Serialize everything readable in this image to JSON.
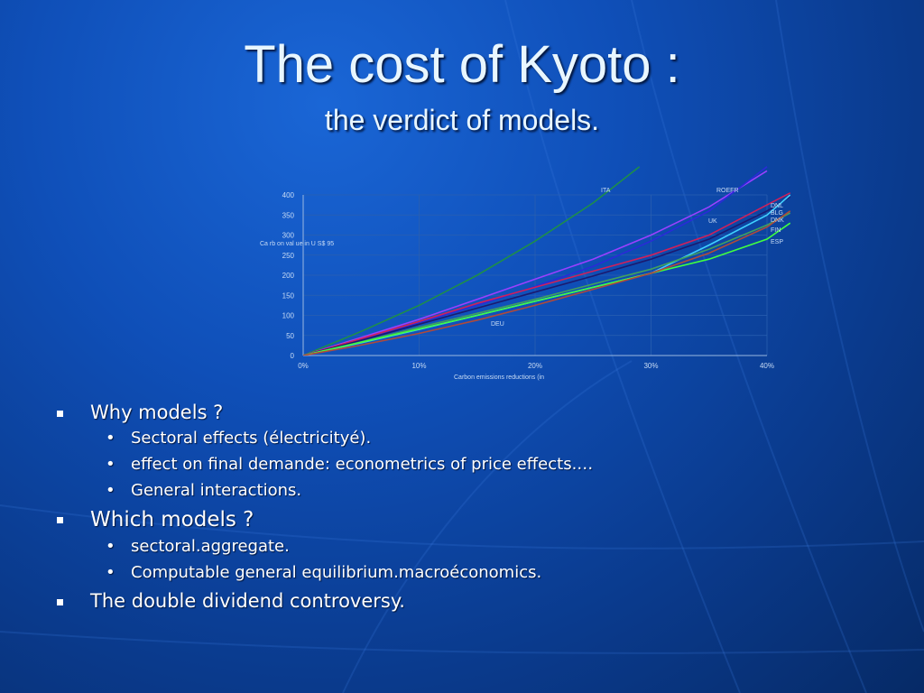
{
  "slide": {
    "title": "The cost of Kyoto :",
    "subtitle": "the verdict of models."
  },
  "bullets": [
    {
      "text": "Why models ?",
      "level": 1,
      "children": [
        {
          "text": "Sectoral effects (électricityé).",
          "level": 2
        },
        {
          "text": "effect on final demande: econometrics of price effects.…",
          "level": 2
        },
        {
          "text": "General interactions.",
          "level": 2
        }
      ]
    },
    {
      "text": "Which models ?",
      "level": 1,
      "children": [
        {
          "text": "sectoral.aggregate.",
          "level": 2
        },
        {
          "text": "Computable general equilibrium.macroéconomics.",
          "level": 2
        }
      ]
    },
    {
      "text": "The double dividend controversy.",
      "level": 1,
      "children": []
    }
  ],
  "chart_data": {
    "type": "line",
    "title": "",
    "xlabel": "Carbon emissions reductions (in",
    "ylabel": "Ca rb on val ue in U S$ 95",
    "xlim": [
      0,
      40
    ],
    "ylim": [
      0,
      400
    ],
    "xticks": [
      0,
      10,
      20,
      30,
      40
    ],
    "xtick_labels": [
      "0%",
      "10%",
      "20%",
      "30%",
      "40%"
    ],
    "yticks": [
      0,
      50,
      100,
      150,
      200,
      250,
      300,
      350,
      400
    ],
    "grid": true,
    "series": [
      {
        "name": "ITA",
        "color": "#1e8e4a",
        "x": [
          0,
          5,
          10,
          15,
          20,
          25,
          29
        ],
        "y": [
          0,
          60,
          125,
          200,
          285,
          380,
          470
        ]
      },
      {
        "name": "ROEFR",
        "color": "#9a40ff",
        "x": [
          0,
          5,
          10,
          15,
          20,
          25,
          30,
          35,
          40
        ],
        "y": [
          0,
          45,
          90,
          140,
          190,
          240,
          300,
          370,
          460
        ]
      },
      {
        "name": "UK",
        "color": "#2a2ad8",
        "x": [
          0,
          5,
          10,
          15,
          20,
          25,
          30,
          35,
          40
        ],
        "y": [
          0,
          40,
          82,
          125,
          172,
          222,
          285,
          360,
          470
        ]
      },
      {
        "name": "DNL",
        "color": "#d0205a",
        "x": [
          0,
          5,
          10,
          15,
          20,
          25,
          30,
          35,
          40,
          42
        ],
        "y": [
          0,
          42,
          85,
          130,
          170,
          210,
          250,
          300,
          375,
          405
        ]
      },
      {
        "name": "BLG",
        "color": "#1a1a70",
        "x": [
          0,
          5,
          10,
          15,
          20,
          25,
          30,
          35,
          40,
          42
        ],
        "y": [
          0,
          38,
          78,
          118,
          158,
          198,
          240,
          290,
          360,
          395
        ]
      },
      {
        "name": "DNK",
        "color": "#3fd0ff",
        "x": [
          0,
          5,
          10,
          15,
          20,
          25,
          30,
          35,
          40,
          42
        ],
        "y": [
          0,
          32,
          65,
          100,
          135,
          170,
          205,
          275,
          350,
          400
        ]
      },
      {
        "name": "FIN",
        "color": "#40a060",
        "x": [
          0,
          5,
          10,
          15,
          20,
          25,
          30,
          35,
          40,
          42
        ],
        "y": [
          0,
          34,
          70,
          105,
          140,
          178,
          215,
          265,
          325,
          355
        ]
      },
      {
        "name": "ESP",
        "color": "#40ff40",
        "x": [
          0,
          5,
          10,
          15,
          20,
          25,
          30,
          35,
          40,
          42
        ],
        "y": [
          0,
          33,
          66,
          100,
          135,
          170,
          205,
          240,
          290,
          330
        ]
      },
      {
        "name": "DEU",
        "color": "#b04a3a",
        "x": [
          0,
          5,
          10,
          15,
          20,
          25,
          30,
          35,
          40,
          42
        ],
        "y": [
          0,
          26,
          55,
          88,
          125,
          165,
          205,
          255,
          320,
          360
        ]
      }
    ],
    "legend": "line-end labels"
  }
}
